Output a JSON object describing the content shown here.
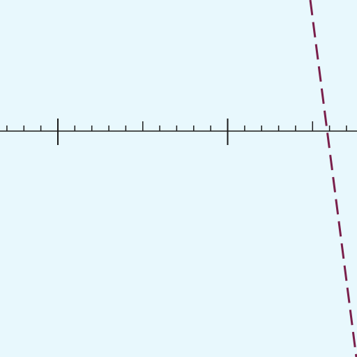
{
  "background_color": "#e8f8fd",
  "axis": {
    "color": "#1a1a1a",
    "major_tick_count": 2,
    "minor_ticks_per_major": 10
  },
  "dashed_line": {
    "color": "#7a1f4b",
    "style": "dashed"
  }
}
